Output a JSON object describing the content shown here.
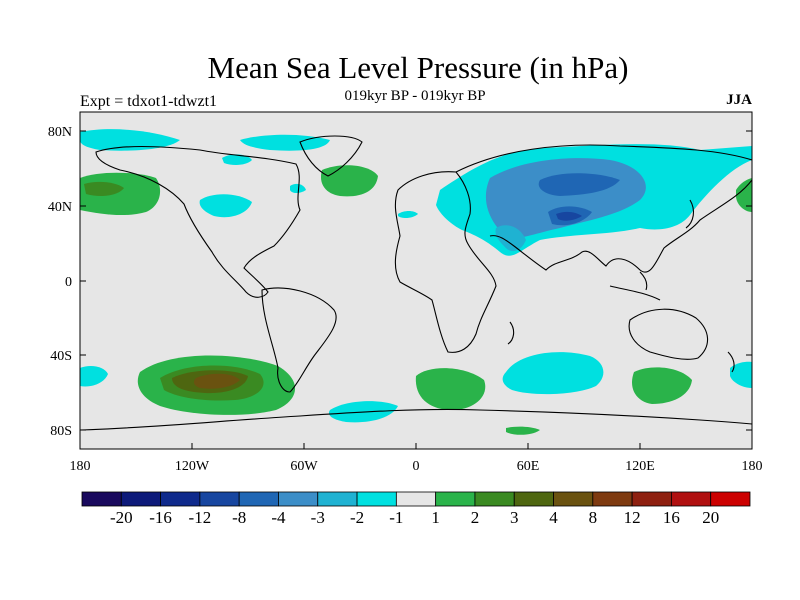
{
  "title": "Mean Sea Level Pressure (in hPa)",
  "subtitle": "019kyr BP - 019kyr BP",
  "expt_label": "Expt = tdxot1-tdwzt1",
  "season": "JJA",
  "axes": {
    "x_ticks": [
      "180",
      "120W",
      "60W",
      "0",
      "60E",
      "120E",
      "180"
    ],
    "y_ticks": [
      "80N",
      "40N",
      "0",
      "40S",
      "80S"
    ]
  },
  "colorbar": {
    "colors": [
      "#1a0a5e",
      "#0d1a7a",
      "#0f2a8c",
      "#1746a0",
      "#1f66b4",
      "#3c8ec8",
      "#1fb2d2",
      "#00e0e0",
      "#e6e6e6",
      "#2ab34a",
      "#3a8a22",
      "#4e6610",
      "#6a5210",
      "#7e3a10",
      "#8e2010",
      "#b01010",
      "#cc0000"
    ],
    "labels": [
      "-20",
      "-16",
      "-12",
      "-8",
      "-4",
      "-3",
      "-2",
      "-1",
      "1",
      "2",
      "3",
      "4",
      "8",
      "12",
      "16",
      "20"
    ]
  },
  "map_colors": {
    "background": "#e6e6e6",
    "neg1": "#00e0e0",
    "neg2": "#1fb2d2",
    "neg3": "#3c8ec8",
    "neg4": "#1f66b4",
    "pos1": "#2ab34a",
    "pos2": "#3a8a22",
    "pos3": "#4e6610",
    "pos4": "#6a5210"
  }
}
